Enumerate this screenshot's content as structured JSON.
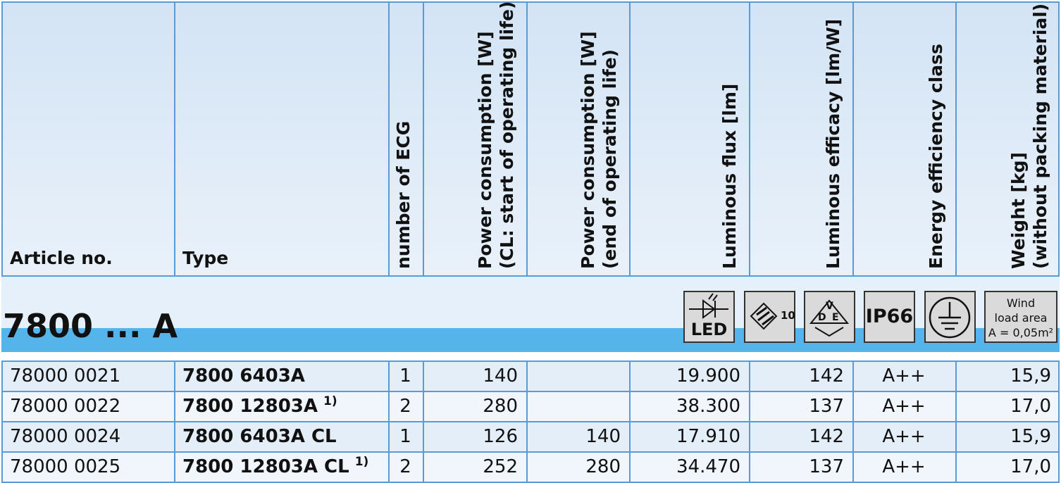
{
  "header": {
    "columns": [
      [
        "Article no."
      ],
      [
        "Type"
      ],
      [
        "number of ECG"
      ],
      [
        "Power consumption [W]",
        "(CL: start of operating life)"
      ],
      [
        "Power consumption [W]",
        "(end of operating life)"
      ],
      [
        "Luminous flux [lm]"
      ],
      [
        "Luminous efficacy [lm/W]"
      ],
      [
        "Energy efficiency class"
      ],
      [
        "Weight [kg]",
        "(without packing material)"
      ]
    ]
  },
  "section": {
    "title": "7800 ... A",
    "icons": {
      "led": "LED",
      "impact": "10",
      "vde": [
        "V",
        "D",
        "E"
      ],
      "ip": "IP66",
      "wind": [
        "Wind",
        "load area",
        "A = 0,05m²"
      ]
    }
  },
  "table": {
    "rows": [
      {
        "article": "78000 0021",
        "type": "7800 6403A",
        "ecg": "1",
        "power_start": "140",
        "flux": "19.900",
        "efficacy": "142",
        "class": "A++",
        "weight": "15,9"
      },
      {
        "article": "78000 0022",
        "type": "7800 12803A",
        "note": "1)",
        "ecg": "2",
        "power_start": "280",
        "flux": "38.300",
        "efficacy": "137",
        "class": "A++",
        "weight": "17,0"
      },
      {
        "article": "78000 0024",
        "type": "7800 6403A CL",
        "ecg": "1",
        "power_start": "126",
        "power_end": "140",
        "flux": "17.910",
        "efficacy": "142",
        "class": "A++",
        "weight": "15,9"
      },
      {
        "article": "78000 0025",
        "type": "7800 12803A CL",
        "note": "1)",
        "ecg": "2",
        "power_start": "252",
        "power_end": "280",
        "flux": "34.470",
        "efficacy": "137",
        "class": "A++",
        "weight": "17,0"
      }
    ]
  }
}
